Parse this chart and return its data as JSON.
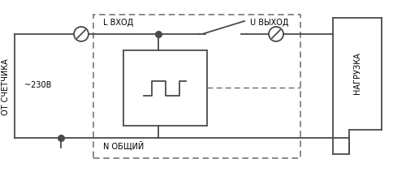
{
  "bg_color": "#ffffff",
  "line_color": "#4a4a4a",
  "dashed_color": "#6a6a6a",
  "label_ot_schetchika": "ОТ СЧЁТЧИКА",
  "label_nagruzka": "НАГРУЗКА",
  "label_230v": "~230В",
  "label_l_vhod": "L ВХОД",
  "label_u_vyhod": "U ВЫХОД",
  "label_n_obshiy": "N ОБЩИЙ",
  "figsize": [
    5.0,
    2.17
  ],
  "dpi": 100
}
